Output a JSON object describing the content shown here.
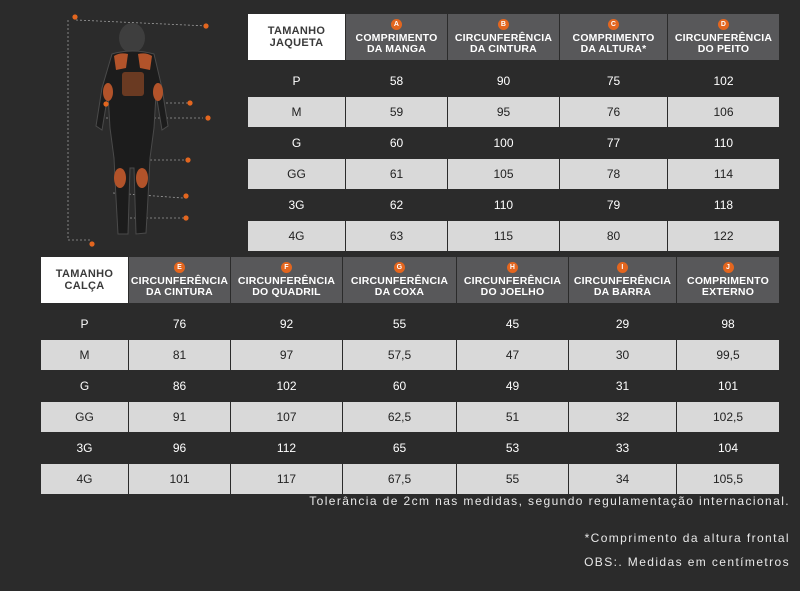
{
  "jacket": {
    "corner": [
      "TAMANHO",
      "JAQUETA"
    ],
    "columns": [
      {
        "badge": "A",
        "line1": "COMPRIMENTO",
        "line2": "DA MANGA"
      },
      {
        "badge": "B",
        "line1": "CIRCUNFERÊNCIA",
        "line2": "DA CINTURA"
      },
      {
        "badge": "C",
        "line1": "COMPRIMENTO",
        "line2": "DA ALTURA*"
      },
      {
        "badge": "D",
        "line1": "CIRCUNFERÊNCIA",
        "line2": "DO PEITO"
      }
    ],
    "rows": [
      {
        "size": "P",
        "values": [
          "58",
          "90",
          "75",
          "102"
        ]
      },
      {
        "size": "M",
        "values": [
          "59",
          "95",
          "76",
          "106"
        ]
      },
      {
        "size": "G",
        "values": [
          "60",
          "100",
          "77",
          "110"
        ]
      },
      {
        "size": "GG",
        "values": [
          "61",
          "105",
          "78",
          "114"
        ]
      },
      {
        "size": "3G",
        "values": [
          "62",
          "110",
          "79",
          "118"
        ]
      },
      {
        "size": "4G",
        "values": [
          "63",
          "115",
          "80",
          "122"
        ]
      }
    ]
  },
  "pants": {
    "corner": [
      "TAMANHO",
      "CALÇA"
    ],
    "columns": [
      {
        "badge": "E",
        "line1": "CIRCUNFERÊNCIA",
        "line2": "DA CINTURA"
      },
      {
        "badge": "F",
        "line1": "CIRCUNFERÊNCIA",
        "line2": "DO QUADRIL"
      },
      {
        "badge": "G",
        "line1": "CIRCUNFERÊNCIA",
        "line2": "DA COXA"
      },
      {
        "badge": "H",
        "line1": "CIRCUNFERÊNCIA",
        "line2": "DO  JOELHO"
      },
      {
        "badge": "I",
        "line1": "CIRCUNFERÊNCIA",
        "line2": "DA BARRA"
      },
      {
        "badge": "J",
        "line1": "COMPRIMENTO",
        "line2": "EXTERNO"
      }
    ],
    "rows": [
      {
        "size": "P",
        "values": [
          "76",
          "92",
          "55",
          "45",
          "29",
          "98"
        ]
      },
      {
        "size": "M",
        "values": [
          "81",
          "97",
          "57,5",
          "47",
          "30",
          "99,5"
        ]
      },
      {
        "size": "G",
        "values": [
          "86",
          "102",
          "60",
          "49",
          "31",
          "101"
        ]
      },
      {
        "size": "GG",
        "values": [
          "91",
          "107",
          "62,5",
          "51",
          "32",
          "102,5"
        ]
      },
      {
        "size": "3G",
        "values": [
          "96",
          "112",
          "65",
          "53",
          "33",
          "104"
        ]
      },
      {
        "size": "4G",
        "values": [
          "101",
          "117",
          "67,5",
          "55",
          "34",
          "105,5"
        ]
      }
    ]
  },
  "notes": {
    "tolerance": "Tolerância de 2cm nas medidas, segundo regulamentação internacional.",
    "frontal": "*Comprimento da altura frontal",
    "obs": "OBS:. Medidas em centímetros"
  },
  "colors": {
    "background": "#2b2b2b",
    "header": "#58585a",
    "light_row": "#d9d9d9",
    "accent": "#e3661f"
  },
  "icons": {
    "figure": "motorcycle-suit-measurement-diagram-icon"
  }
}
